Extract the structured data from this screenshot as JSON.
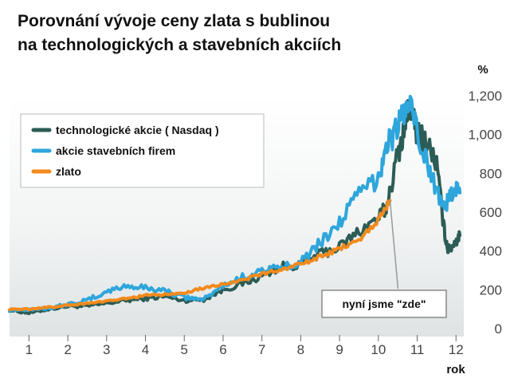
{
  "title_line1": "Porovnání vývoje ceny zlata s bublinou",
  "title_line2": "na technologických a stavebních akciích",
  "chart_data": {
    "type": "line",
    "title": "Porovnání vývoje ceny zlata s bublinou na technologických a stavebních akciích",
    "xlabel": "rok",
    "ylabel": "%",
    "xlim": [
      0.5,
      12.2
    ],
    "ylim": [
      0,
      1200
    ],
    "xticks": [
      "1",
      "2",
      "3",
      "4",
      "5",
      "6",
      "7",
      "8",
      "9",
      "10",
      "11",
      "12"
    ],
    "yticks": [
      "0",
      "200",
      "400",
      "600",
      "800",
      "1,000",
      "1,200"
    ],
    "legend_position": "top-left",
    "grid": false,
    "series": [
      {
        "name": "technologické akcie ( Nasdaq )",
        "color": "#2b5c55",
        "x": [
          0.5,
          1.0,
          1.5,
          2.0,
          2.5,
          3.0,
          3.5,
          4.0,
          4.5,
          5.0,
          5.5,
          6.0,
          6.5,
          7.0,
          7.5,
          8.0,
          8.5,
          9.0,
          9.5,
          10.0,
          10.2,
          10.5,
          10.7,
          10.8,
          11.0,
          11.2,
          11.5,
          11.7,
          11.8,
          12.0,
          12.1
        ],
        "y": [
          95,
          80,
          100,
          115,
          115,
          130,
          145,
          155,
          165,
          145,
          150,
          200,
          230,
          270,
          320,
          330,
          385,
          420,
          500,
          570,
          620,
          900,
          1050,
          1150,
          1000,
          980,
          850,
          500,
          400,
          450,
          480
        ]
      },
      {
        "name": "akcie stavebních firem",
        "color": "#2ea6dc",
        "x": [
          0.5,
          1.0,
          1.5,
          2.0,
          2.5,
          3.0,
          3.5,
          4.0,
          4.5,
          5.0,
          5.5,
          6.0,
          6.5,
          7.0,
          7.5,
          8.0,
          8.5,
          9.0,
          9.5,
          10.0,
          10.2,
          10.4,
          10.6,
          10.8,
          11.0,
          11.3,
          11.6,
          11.8,
          12.0,
          12.1
        ],
        "y": [
          95,
          100,
          105,
          125,
          145,
          190,
          220,
          210,
          195,
          160,
          150,
          220,
          265,
          300,
          310,
          350,
          440,
          550,
          690,
          780,
          950,
          1000,
          1100,
          1160,
          1000,
          820,
          670,
          650,
          730,
          700
        ]
      },
      {
        "name": "zlato",
        "color": "#f28a1c",
        "x": [
          0.5,
          1.0,
          1.5,
          2.0,
          2.5,
          3.0,
          3.5,
          4.0,
          4.5,
          5.0,
          5.5,
          6.0,
          6.5,
          7.0,
          7.5,
          8.0,
          8.5,
          9.0,
          9.5,
          10.0,
          10.3
        ],
        "y": [
          100,
          100,
          110,
          120,
          130,
          140,
          155,
          170,
          175,
          185,
          210,
          230,
          250,
          280,
          305,
          330,
          370,
          410,
          460,
          560,
          660
        ]
      }
    ],
    "annotation": "nyní jsme \"zde\"",
    "annotation_x": 10.3
  }
}
